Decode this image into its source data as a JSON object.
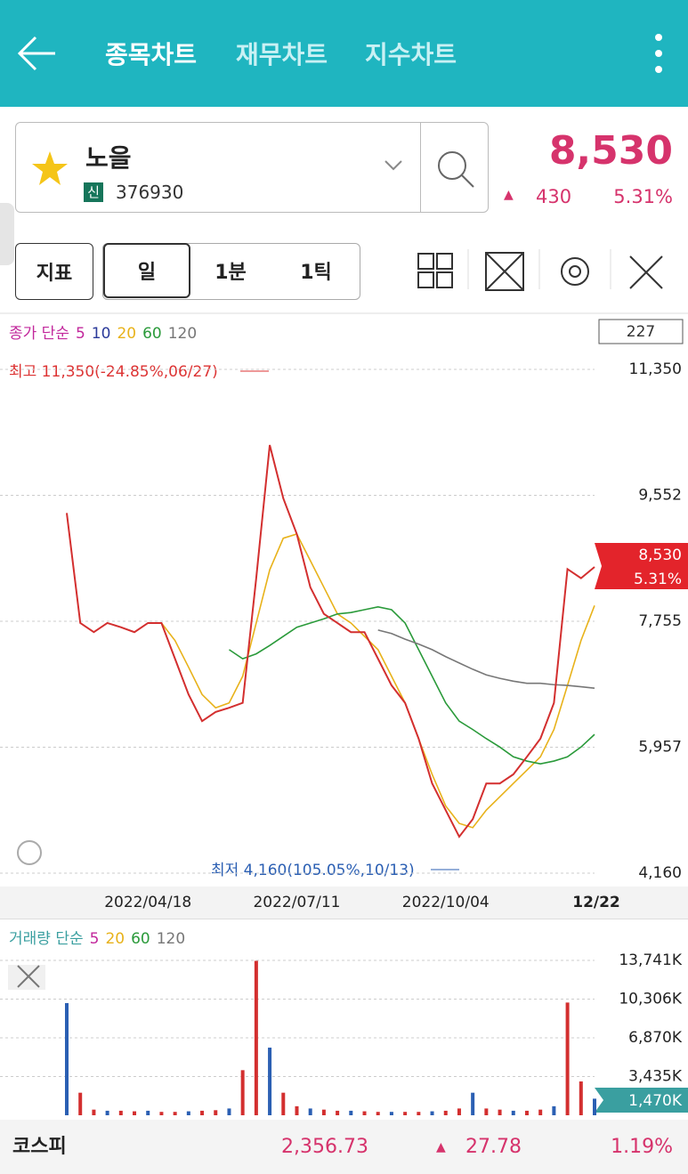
{
  "header": {
    "tabs": [
      "종목차트",
      "재무차트",
      "지수차트"
    ]
  },
  "stock": {
    "name": "노을",
    "badge": "신",
    "code": "376930",
    "price": "8,530",
    "change": "430",
    "change_pct": "5.31%"
  },
  "toolbar": {
    "buttons": [
      "지표",
      "일",
      "1분",
      "1틱"
    ]
  },
  "chart_data": [
    {
      "type": "line",
      "legend_title": "종가 단순",
      "legend_extra": [
        {
          "name": "5",
          "color": "#c2289c"
        },
        {
          "name": "10",
          "color": "#2b3a9a"
        }
      ],
      "count_box": "227",
      "high_label": "최고 11,350(-24.85%,06/27)",
      "low_label": "최저 4,160(105.05%,10/13)",
      "last_price": "8,530",
      "last_pct": "5.31%",
      "categories": [
        null,
        null,
        null,
        null,
        null,
        null,
        "2022/04/18",
        null,
        null,
        null,
        null,
        null,
        null,
        null,
        null,
        null,
        null,
        "2022/07/11",
        null,
        null,
        null,
        null,
        null,
        null,
        null,
        null,
        null,
        null,
        "2022/10/04",
        null,
        null,
        null,
        null,
        null,
        null,
        null,
        null,
        null,
        null,
        "12/22"
      ],
      "values": [
        9300,
        7730,
        7600,
        7730,
        7670,
        7600,
        7730,
        7730,
        7220,
        6710,
        6330,
        6460,
        6520,
        6590,
        8370,
        10270,
        9510,
        9000,
        8240,
        7860,
        7730,
        7600,
        7600,
        7220,
        6840,
        6590,
        6080,
        5440,
        5060,
        4680,
        4930,
        5440,
        5440,
        5570,
        5820,
        6080,
        6590,
        8500,
        8370,
        8530
      ],
      "color": "#d32f2f",
      "series": [
        {
          "name": "20",
          "color": "#e8b21a",
          "values": [
            null,
            null,
            null,
            null,
            null,
            null,
            null,
            7730,
            7480,
            7100,
            6710,
            6520,
            6590,
            6970,
            7730,
            8490,
            8940,
            9000,
            8620,
            8240,
            7860,
            7730,
            7540,
            7350,
            6970,
            6590,
            6080,
            5570,
            5120,
            4870,
            4810,
            5060,
            5250,
            5440,
            5630,
            5820,
            6210,
            6840,
            7480,
            7980
          ]
        },
        {
          "name": "60",
          "color": "#2a9a3a",
          "values": [
            null,
            null,
            null,
            null,
            null,
            null,
            null,
            null,
            null,
            null,
            null,
            null,
            7350,
            7220,
            7290,
            7410,
            7540,
            7670,
            7730,
            7790,
            7860,
            7880,
            7920,
            7960,
            7920,
            7730,
            7350,
            6970,
            6590,
            6330,
            6210,
            6080,
            5960,
            5820,
            5760,
            5720,
            5760,
            5820,
            5960,
            6140
          ]
        },
        {
          "name": "120",
          "color": "#777777",
          "values": [
            null,
            null,
            null,
            null,
            null,
            null,
            null,
            null,
            null,
            null,
            null,
            null,
            null,
            null,
            null,
            null,
            null,
            null,
            null,
            null,
            null,
            null,
            null,
            7630,
            7580,
            7500,
            7430,
            7350,
            7250,
            7160,
            7070,
            6990,
            6940,
            6900,
            6870,
            6870,
            6850,
            6840,
            6820,
            6800
          ]
        }
      ],
      "ylim": [
        4160,
        11350
      ],
      "yticks": [
        {
          "value": 4160,
          "label": "4,160"
        },
        {
          "value": 5957,
          "label": "5,957"
        },
        {
          "value": 7755,
          "label": "7,755"
        },
        {
          "value": 9552,
          "label": "9,552"
        },
        {
          "value": 11350,
          "label": "11,350"
        }
      ],
      "grid": true
    },
    {
      "type": "bar",
      "legend_title": "거래량 단순",
      "legend_items": [
        {
          "name": "5",
          "color": "#c2289c"
        },
        {
          "name": "20",
          "color": "#e8b21a"
        },
        {
          "name": "60",
          "color": "#2a9a3a"
        },
        {
          "name": "120",
          "color": "#777777"
        }
      ],
      "last_label": "1,470K",
      "values": [
        9950,
        2000,
        500,
        400,
        400,
        350,
        400,
        300,
        300,
        350,
        400,
        450,
        600,
        4000,
        13700,
        6000,
        2000,
        800,
        600,
        500,
        400,
        400,
        350,
        300,
        300,
        300,
        300,
        350,
        400,
        600,
        2000,
        600,
        500,
        400,
        400,
        500,
        800,
        10000,
        3000,
        1470
      ],
      "color": "#d32f2f",
      "ylim": [
        0,
        13741
      ],
      "yticks": [
        {
          "value": 3435,
          "label": "3,435K"
        },
        {
          "value": 6870,
          "label": "6,870K"
        },
        {
          "value": 10306,
          "label": "10,306K"
        },
        {
          "value": 13741,
          "label": "13,741K"
        }
      ],
      "grid": true
    }
  ],
  "market": {
    "name": "코스피",
    "index": "2,356.73",
    "change": "27.78",
    "change_pct": "1.19%"
  }
}
